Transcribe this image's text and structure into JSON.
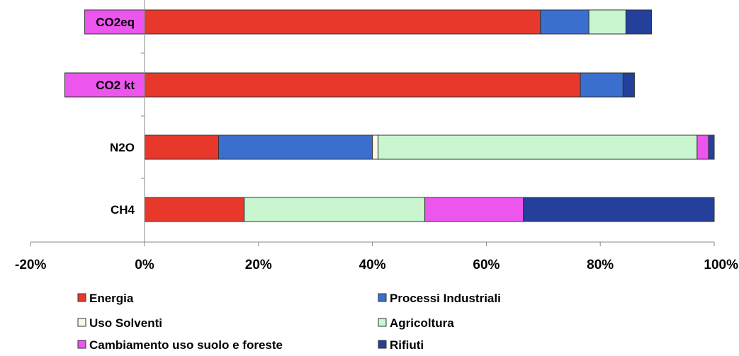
{
  "chart_data": {
    "type": "bar",
    "orientation": "horizontal",
    "stacked": true,
    "categories": [
      "CO2eq",
      "CO2 kt",
      "N2O",
      "CH4"
    ],
    "series": [
      {
        "name": "Energia",
        "color": "#e8382b",
        "values": [
          69.5,
          76.5,
          13.0,
          17.5
        ]
      },
      {
        "name": "Processi Industriali",
        "color": "#3a6fcf",
        "values": [
          8.5,
          7.5,
          27.0,
          0
        ]
      },
      {
        "name": "Uso Solventi",
        "color": "#fbf7ea",
        "values": [
          0,
          0,
          1.0,
          0
        ]
      },
      {
        "name": "Agricoltura",
        "color": "#c9f6cf",
        "values": [
          6.5,
          0,
          56.0,
          31.7
        ]
      },
      {
        "name": "Cambiamento uso suolo e foreste",
        "color": "#ec55ee",
        "values": [
          -10.5,
          -14.0,
          2.0,
          17.3
        ]
      },
      {
        "name": "Rifiuti",
        "color": "#24409a",
        "values": [
          4.5,
          2.0,
          1.0,
          33.5
        ]
      }
    ],
    "xlim": [
      -20,
      100
    ],
    "xticks": [
      "-20%",
      "0%",
      "20%",
      "40%",
      "60%",
      "80%",
      "100%"
    ],
    "xtick_values": [
      -20,
      0,
      20,
      40,
      60,
      80,
      100
    ],
    "grid": false,
    "legend_position": "bottom",
    "title": "",
    "xlabel": "",
    "ylabel": ""
  }
}
